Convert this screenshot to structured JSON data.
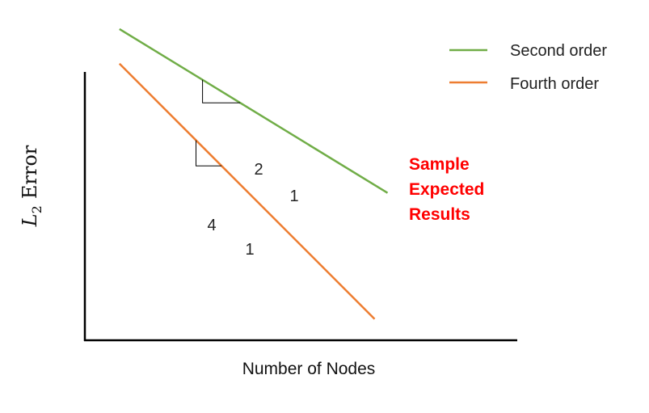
{
  "chart_data": {
    "type": "line",
    "xlabel": "Number of Nodes",
    "ylabel": {
      "symbol": "L",
      "subscript": "2",
      "word": "Error"
    },
    "xlim": [
      0,
      1
    ],
    "ylim": [
      0,
      1
    ],
    "x_log": true,
    "y_log": true,
    "grid": false,
    "legend_position": "top-right",
    "series": [
      {
        "name": "Second order",
        "color": "#70ad47",
        "x": [
          0.08,
          0.7
        ],
        "y": [
          0.99,
          0.47
        ]
      },
      {
        "name": "Fourth order",
        "color": "#ed7d31",
        "x": [
          0.08,
          0.67
        ],
        "y": [
          0.88,
          0.07
        ]
      }
    ],
    "slope_triangles": [
      {
        "series": "Second order",
        "rise_label": "2",
        "run_label": "1"
      },
      {
        "series": "Fourth order",
        "rise_label": "4",
        "run_label": "1"
      }
    ],
    "annotation": {
      "lines": [
        "Sample",
        "Expected",
        "Results"
      ],
      "color": "#ff0000"
    }
  }
}
